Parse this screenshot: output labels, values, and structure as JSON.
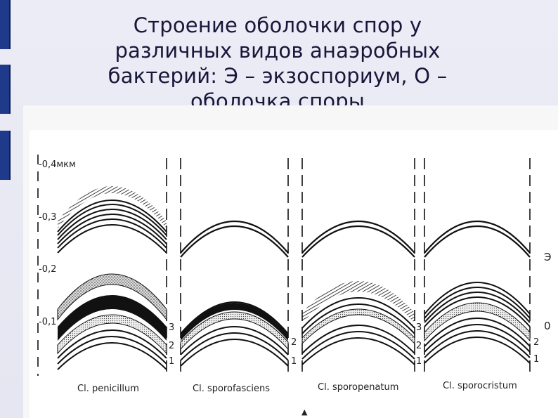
{
  "slide": {
    "title_line1": "Строение оболочки спор у",
    "title_line2": "различных видов анаэробных",
    "title_line3": "бактерий: Э – экзоспориум, О –",
    "title_line4": "оболочка споры"
  },
  "figure": {
    "scale_label_top": "-0,4мкм",
    "scale_ticks": [
      "-0,3",
      "-0,2",
      "-0,1"
    ],
    "layer_numbers": [
      "3",
      "2",
      "1"
    ],
    "right_label_e": "Э",
    "right_label_o": "0",
    "species": [
      "Cl. penicillum",
      "Cl. sporofasciens",
      "Cl. sporopenatum",
      "Cl. sporocristum"
    ],
    "arrow_glyph": "▲"
  }
}
